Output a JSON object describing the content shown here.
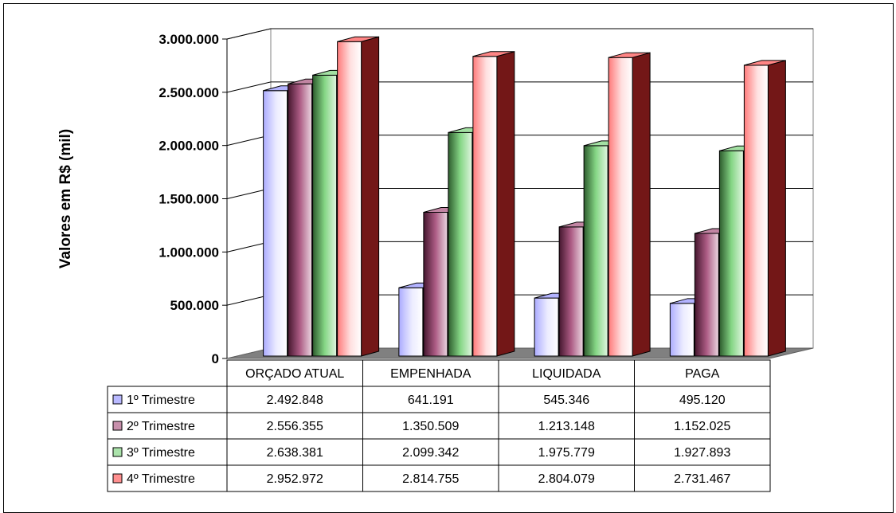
{
  "chart_data": {
    "type": "bar",
    "subtype": "3d-clustered-column-with-data-table",
    "ylabel": "Valores em R$ (mil)",
    "ylim": [
      0,
      3000000
    ],
    "yticks": [
      0,
      500000,
      1000000,
      1500000,
      2000000,
      2500000,
      3000000
    ],
    "ytick_labels": [
      "0",
      "500.000",
      "1.000.000",
      "1.500.000",
      "2.000.000",
      "2.500.000",
      "3.000.000"
    ],
    "grid": true,
    "categories": [
      "ORÇADO ATUAL",
      "EMPENHADA",
      "LIQUIDADA",
      "PAGA"
    ],
    "series": [
      {
        "name": "1º Trimestre",
        "color": "#8080ff",
        "values": [
          2492848,
          641191,
          545346,
          495120
        ],
        "value_labels": [
          "2.492.848",
          "641.191",
          "545.346",
          "495.120"
        ]
      },
      {
        "name": "2º Trimestre",
        "color": "#993366",
        "values": [
          2556355,
          1350509,
          1213148,
          1152025
        ],
        "value_labels": [
          "2.556.355",
          "1.350.509",
          "1.213.148",
          "1.152.025"
        ]
      },
      {
        "name": "3º Trimestre",
        "color": "#66cc66",
        "values": [
          2638381,
          2099342,
          1975779,
          1927893
        ],
        "value_labels": [
          "2.638.381",
          "2.099.342",
          "1.975.779",
          "1.927.893"
        ]
      },
      {
        "name": "4º Trimestre",
        "color": "#ff3333",
        "values": [
          2952972,
          2814755,
          2804079,
          2731467
        ],
        "value_labels": [
          "2.952.972",
          "2.814.755",
          "2.804.079",
          "2.731.467"
        ]
      }
    ],
    "legend": "data-table"
  }
}
